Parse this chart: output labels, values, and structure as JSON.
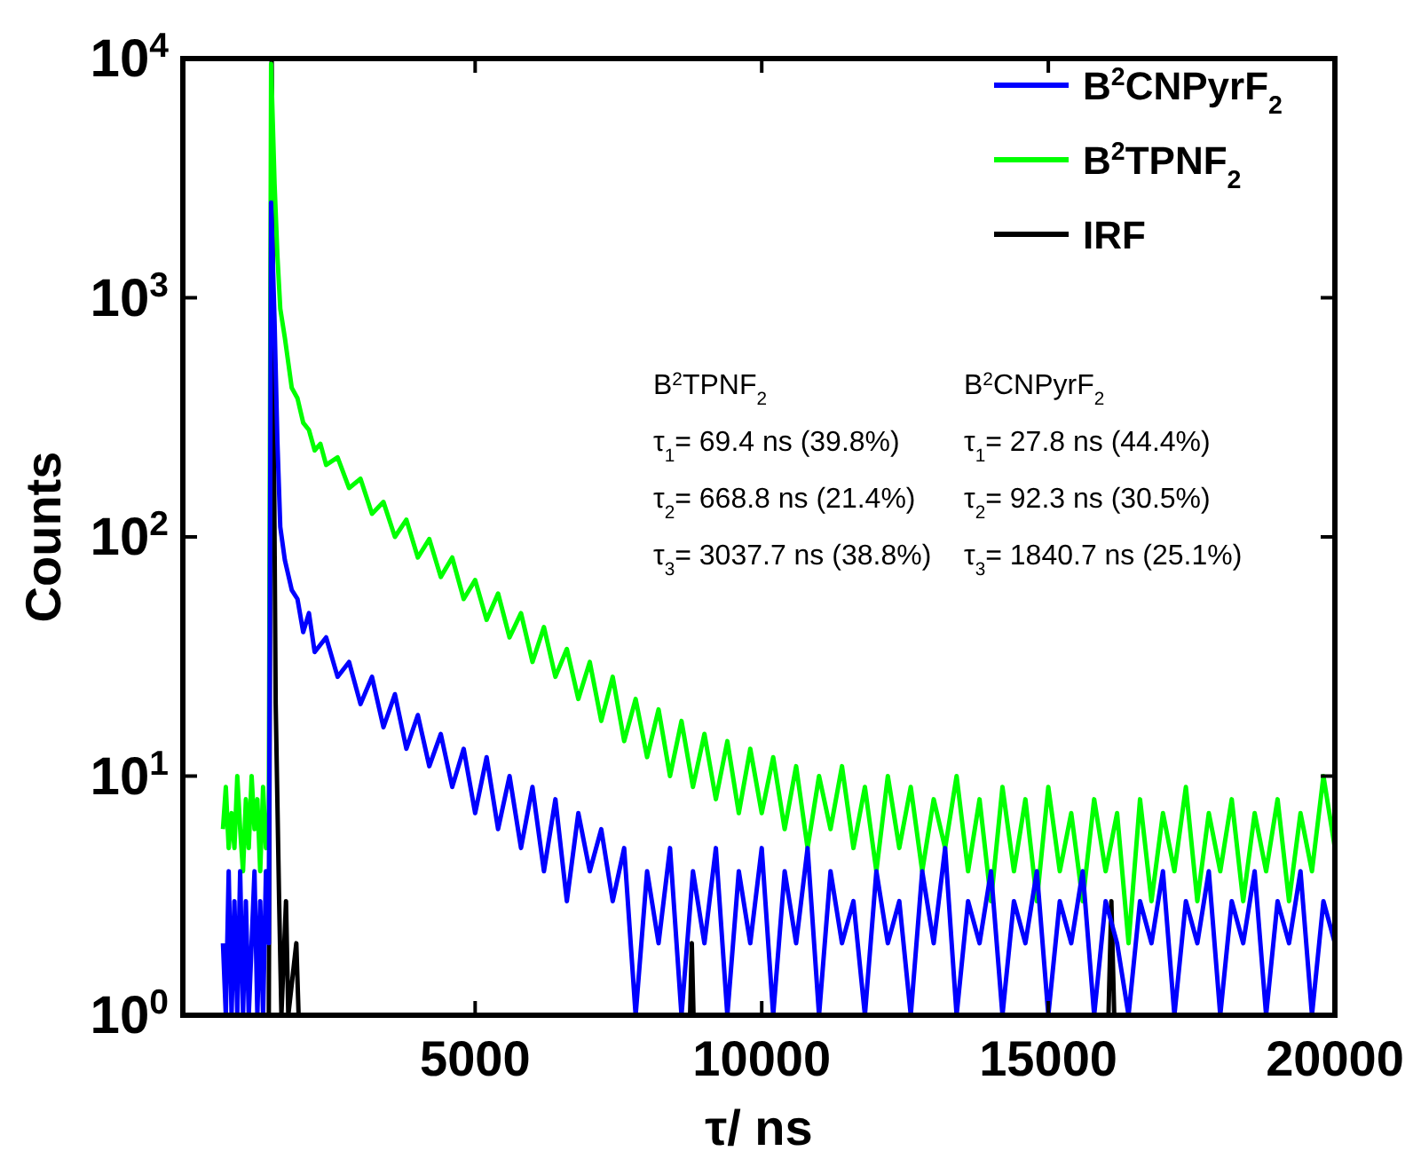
{
  "chart_data": {
    "type": "line",
    "xlabel": "τ/ ns",
    "ylabel": "Counts",
    "log": "y",
    "xlim": [
      -100,
      20000
    ],
    "xticks": [
      5000,
      10000,
      15000,
      20000
    ],
    "ylim": [
      1,
      10000
    ],
    "yticks": [
      {
        "value": 1,
        "label": "10$^{0}$"
      },
      {
        "value": 10,
        "label": "10$^{1}$"
      },
      {
        "value": 100,
        "label": "10$^{2}$"
      },
      {
        "value": 1000,
        "label": "10$^{3}$"
      },
      {
        "value": 10000,
        "label": "10$^{4}$"
      }
    ],
    "legend": "top right",
    "grid": false,
    "line_style": "solid",
    "annotations": [
      "B$^{2}$TPNF$_{2}$",
      "τ$_{1}$= 69.4 ns  (39.8%)",
      "τ$_{2}$= 668.8 ns  (21.4%)",
      "τ$_{3}$= 3037.7 ns  (38.8%)",
      "B$^{2}$CNPyrF$_{2}$",
      "τ$_{1}$= 27.8 ns  (44.4%)",
      "τ$_{2}$= 92.3 ns  (30.5%)",
      "τ$_{3}$= 1840.7 ns  (25.1%)"
    ],
    "series": [
      {
        "name": "B$^{2}$CNPyrF$_{2}$",
        "color": "#0000ff",
        "x": [
          600,
          650,
          700,
          750,
          800,
          850,
          900,
          950,
          1000,
          1050,
          1100,
          1150,
          1200,
          1250,
          1300,
          1350,
          1400,
          1440,
          1500,
          1550,
          1600,
          1680,
          1800,
          1900,
          2000,
          2100,
          2200,
          2400,
          2600,
          2800,
          3000,
          3200,
          3400,
          3600,
          3800,
          4000,
          4200,
          4400,
          4600,
          4800,
          5000,
          5200,
          5400,
          5600,
          5800,
          6000,
          6200,
          6400,
          6600,
          6800,
          7000,
          7200,
          7400,
          7600,
          7800,
          8000,
          8200,
          8400,
          8600,
          8800,
          9000,
          9200,
          9400,
          9600,
          9800,
          10000,
          10200,
          10400,
          10600,
          10800,
          11000,
          11200,
          11400,
          11600,
          11800,
          12000,
          12200,
          12400,
          12600,
          12800,
          13000,
          13200,
          13400,
          13600,
          13800,
          14000,
          14200,
          14400,
          14600,
          14800,
          15000,
          15200,
          15400,
          15600,
          15800,
          16000,
          16200,
          16400,
          16600,
          16800,
          17000,
          17200,
          17400,
          17600,
          17800,
          18000,
          18200,
          18400,
          18600,
          18800,
          19000,
          19200,
          19400,
          19600,
          19800,
          20000
        ],
        "values": [
          2,
          1,
          4,
          1,
          3,
          1,
          4,
          1,
          3,
          1,
          2,
          4,
          1,
          3,
          1,
          4,
          2,
          2500,
          800,
          250,
          110,
          80,
          60,
          55,
          40,
          48,
          33,
          38,
          26,
          30,
          20,
          26,
          16,
          22,
          13,
          18,
          11,
          15,
          9,
          13,
          7,
          12,
          6,
          10,
          5,
          9,
          4,
          8,
          3,
          7,
          4,
          6,
          3,
          5,
          1,
          4,
          2,
          5,
          1,
          4,
          2,
          5,
          1,
          4,
          2,
          5,
          1,
          4,
          2,
          5,
          1,
          4,
          2,
          3,
          1,
          4,
          2,
          3,
          1,
          4,
          2,
          5,
          1,
          3,
          2,
          4,
          1,
          3,
          2,
          4,
          1,
          3,
          2,
          4,
          1,
          3,
          2,
          1,
          3,
          2,
          4,
          1,
          3,
          2,
          4,
          1,
          3,
          2,
          4,
          1,
          3,
          2,
          4,
          1,
          3,
          2
        ]
      },
      {
        "name": "B$^{2}$TPNF$_{2}$",
        "color": "#00ff00",
        "x": [
          600,
          650,
          700,
          750,
          800,
          850,
          900,
          950,
          1000,
          1050,
          1100,
          1150,
          1200,
          1250,
          1300,
          1350,
          1400,
          1440,
          1500,
          1550,
          1600,
          1680,
          1800,
          1900,
          2000,
          2100,
          2200,
          2300,
          2400,
          2600,
          2800,
          3000,
          3200,
          3400,
          3600,
          3800,
          4000,
          4200,
          4400,
          4600,
          4800,
          5000,
          5200,
          5400,
          5600,
          5800,
          6000,
          6200,
          6400,
          6600,
          6800,
          7000,
          7200,
          7400,
          7600,
          7800,
          8000,
          8200,
          8400,
          8600,
          8800,
          9000,
          9200,
          9400,
          9600,
          9800,
          10000,
          10200,
          10400,
          10600,
          10800,
          11000,
          11200,
          11400,
          11600,
          11800,
          12000,
          12200,
          12400,
          12600,
          12800,
          13000,
          13200,
          13400,
          13600,
          13800,
          14000,
          14200,
          14400,
          14600,
          14800,
          15000,
          15200,
          15400,
          15600,
          15800,
          16000,
          16200,
          16400,
          16600,
          16800,
          17000,
          17200,
          17400,
          17600,
          17800,
          18000,
          18200,
          18400,
          18600,
          18800,
          19000,
          19200,
          19400,
          19600,
          19800,
          20000
        ],
        "values": [
          6,
          9,
          5,
          7,
          5,
          10,
          6,
          4,
          8,
          5,
          10,
          6,
          8,
          4,
          9,
          5,
          7,
          9500,
          3000,
          1500,
          900,
          680,
          420,
          380,
          300,
          280,
          230,
          245,
          200,
          215,
          160,
          175,
          125,
          140,
          100,
          118,
          82,
          98,
          68,
          82,
          55,
          66,
          45,
          58,
          38,
          48,
          30,
          42,
          26,
          34,
          21,
          30,
          17,
          26,
          14,
          21,
          12,
          19,
          10,
          17,
          9,
          15,
          8,
          14,
          7,
          13,
          7,
          12,
          6,
          11,
          5,
          10,
          6,
          11,
          5,
          9,
          4,
          10,
          5,
          9,
          4,
          8,
          5,
          10,
          4,
          8,
          3,
          9,
          4,
          8,
          3,
          9,
          4,
          7,
          3,
          8,
          4,
          7,
          2,
          8,
          3,
          7,
          4,
          9,
          3,
          7,
          4,
          8,
          3,
          7,
          4,
          8,
          3,
          7,
          4,
          10,
          5
        ]
      },
      {
        "name": "IRF",
        "color": "#000000",
        "x": [
          600,
          1400,
          1450,
          1480,
          1520,
          1580,
          1620,
          1700,
          1740,
          1880,
          1920,
          8750,
          8780,
          8810,
          16050,
          16100,
          16150,
          20000
        ],
        "values": [
          1,
          1,
          10000,
          500,
          20,
          3,
          1,
          3,
          1,
          2,
          1,
          1,
          2,
          1,
          1,
          3,
          1,
          1
        ]
      }
    ]
  }
}
